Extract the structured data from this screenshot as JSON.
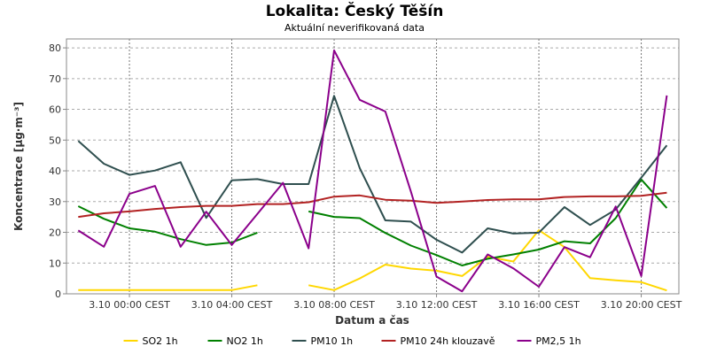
{
  "chart_data": {
    "type": "line",
    "title": "Lokalita: Český Těšín",
    "subtitle": "Aktuální neverifikovaná data",
    "xlabel": "Datum a čas",
    "ylabel": "Koncentrace [µg·m⁻³]",
    "ylim": [
      0,
      82.9
    ],
    "xlim_hours": [
      -2.46,
      21.47
    ],
    "yticks": [
      0,
      10,
      20,
      30,
      40,
      50,
      60,
      70,
      80
    ],
    "xticks": [
      {
        "hour": 0,
        "label": "3.10 00:00 CEST"
      },
      {
        "hour": 4,
        "label": "3.10 04:00 CEST"
      },
      {
        "hour": 8,
        "label": "3.10 08:00 CEST"
      },
      {
        "hour": 12,
        "label": "3.10 12:00 CEST"
      },
      {
        "hour": 16,
        "label": "3.10 16:00 CEST"
      },
      {
        "hour": 20,
        "label": "3.10 20:00 CEST"
      }
    ],
    "grid": true,
    "legend_position": "bottom",
    "x_hours": [
      -2,
      -1,
      0,
      1,
      2,
      3,
      4,
      5,
      6,
      7,
      8,
      9,
      10,
      11,
      12,
      13,
      14,
      15,
      16,
      17,
      18,
      19,
      20,
      21
    ],
    "series": [
      {
        "name": "SO2 1h",
        "color": "#ffd700",
        "values": [
          1.2,
          1.2,
          1.2,
          1.2,
          1.2,
          1.2,
          1.2,
          2.8,
          null,
          2.8,
          1.2,
          5.0,
          9.5,
          8.2,
          7.5,
          5.8,
          12.1,
          10.5,
          20.7,
          15.2,
          5.1,
          4.4,
          3.8,
          1.1
        ]
      },
      {
        "name": "NO2 1h",
        "color": "#008000",
        "values": [
          28.5,
          24.4,
          21.3,
          20.2,
          17.8,
          15.9,
          16.7,
          19.9,
          null,
          26.8,
          25.0,
          24.6,
          19.8,
          15.7,
          12.6,
          9.2,
          11.4,
          12.8,
          14.4,
          17.1,
          16.4,
          24.6,
          37.2,
          27.9
        ]
      },
      {
        "name": "PM10 1h",
        "color": "#2f4f4f",
        "values": [
          49.7,
          42.3,
          38.7,
          40.1,
          42.8,
          24.7,
          36.9,
          37.3,
          35.7,
          35.7,
          64.4,
          40.9,
          23.9,
          23.5,
          17.6,
          13.4,
          21.3,
          19.6,
          19.9,
          28.2,
          22.4,
          27.4,
          37.8,
          48.3
        ]
      },
      {
        "name": "PM10 24h klouzavě",
        "color": "#b22222",
        "values": [
          25.0,
          26.2,
          26.8,
          27.6,
          28.2,
          28.6,
          28.6,
          29.2,
          29.2,
          29.8,
          31.6,
          32.0,
          30.6,
          30.3,
          29.6,
          30.0,
          30.5,
          30.7,
          30.7,
          31.5,
          31.7,
          31.7,
          31.9,
          32.9
        ]
      },
      {
        "name": "PM2,5 1h",
        "color": "#8b008b",
        "values": [
          20.6,
          15.3,
          32.5,
          35.1,
          15.3,
          26.7,
          15.9,
          26.0,
          36.1,
          14.8,
          79.2,
          63.1,
          59.3,
          33.2,
          5.6,
          0.8,
          12.8,
          8.3,
          2.3,
          15.2,
          11.9,
          28.4,
          5.8,
          64.5
        ]
      }
    ]
  }
}
